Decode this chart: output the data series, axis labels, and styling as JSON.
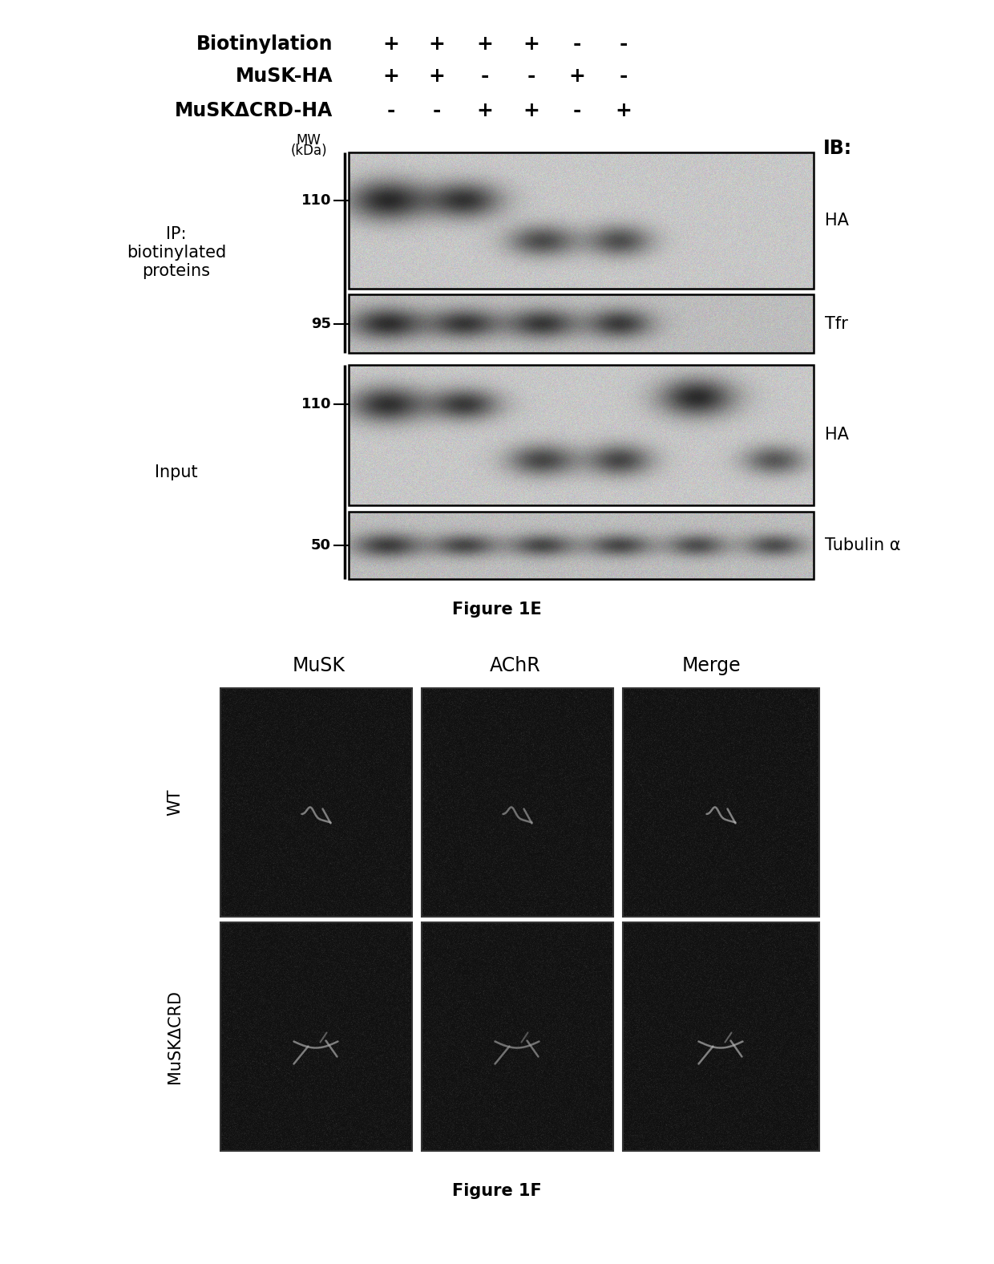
{
  "fig_width": 12.4,
  "fig_height": 15.76,
  "bg_color": "#ffffff",
  "header_rows": [
    {
      "label": "Biotinylation",
      "values": [
        "+",
        "+",
        "+",
        "+",
        "-",
        "-"
      ]
    },
    {
      "label": "MuSK-HA",
      "values": [
        "+",
        "+",
        "-",
        "-",
        "+",
        "-"
      ]
    },
    {
      "label": "MuSKΔCRD-HA",
      "values": [
        "-",
        "-",
        "+",
        "+",
        "-",
        "+"
      ]
    }
  ],
  "ip_label": "IP:\nbiotinylated\nproteins",
  "input_label": "Input",
  "ib_label": "IB:",
  "blot_labels_right": [
    "HA",
    "Tfr",
    "HA",
    "Tubulin α"
  ],
  "mw_labels": [
    "110",
    "95",
    "110",
    "50"
  ],
  "figure1e_caption": "Figure 1E",
  "figure1f_caption": "Figure 1F",
  "col_labels": [
    "MuSK",
    "AChR",
    "Merge"
  ],
  "row_labels": [
    "WT",
    "MuSKΔCRD"
  ],
  "header_font_size": 17,
  "label_font_size": 15,
  "caption_font_size": 14,
  "mw_font_size": 13
}
